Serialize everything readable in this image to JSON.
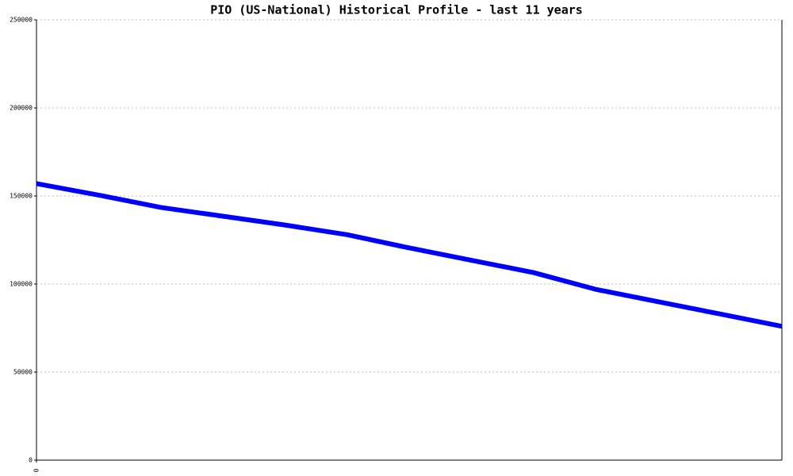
{
  "chart_data": {
    "type": "line",
    "title": "PIO (US-National) Historical Profile - last 11 years",
    "x": [
      0,
      1,
      2,
      3,
      4,
      5,
      6,
      7,
      8,
      9,
      10,
      11,
      12
    ],
    "series": [
      {
        "color": "#0000ff",
        "values": [
          157000,
          150500,
          143500,
          138500,
          133500,
          128000,
          120500,
          113500,
          106500,
          97000,
          90000,
          83000,
          76000
        ]
      }
    ],
    "xlim": [
      0,
      12
    ],
    "xticks": [
      0
    ],
    "ylim": [
      0,
      250000
    ],
    "yticks": [
      0,
      50000,
      100000,
      150000,
      200000,
      250000
    ],
    "grid": true
  }
}
